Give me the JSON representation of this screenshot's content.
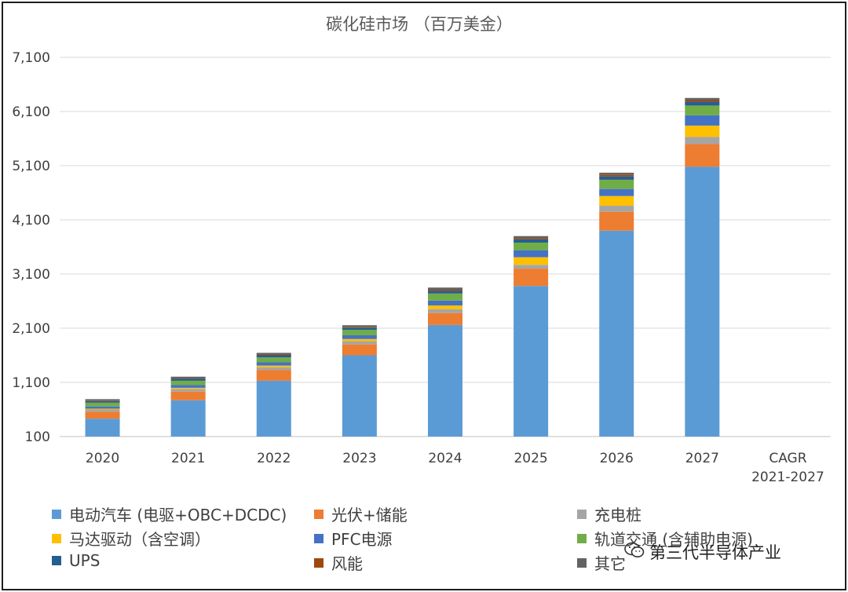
{
  "chart_data": {
    "type": "bar",
    "stacked": true,
    "title": "碳化硅市场 （百万美金）",
    "categories": [
      "2020",
      "2021",
      "2022",
      "2023",
      "2024",
      "2025",
      "2026",
      "2027",
      "CAGR\n2021-2027"
    ],
    "ylim": [
      100,
      7100
    ],
    "yticks": [
      "100",
      "1,100",
      "2,100",
      "3,100",
      "4,100",
      "5,100",
      "6,100",
      "7,100"
    ],
    "ytick_values": [
      100,
      1100,
      2100,
      3100,
      4100,
      5100,
      6100,
      7100
    ],
    "grid": true,
    "legend_position": "bottom",
    "series": [
      {
        "name": "电动汽车 (电驱+OBC+DCDC)",
        "color": "#5b9bd5",
        "values": [
          330,
          670,
          1030,
          1500,
          2060,
          2780,
          3800,
          4980,
          null
        ]
      },
      {
        "name": "光伏+储能",
        "color": "#ed7d31",
        "values": [
          130,
          160,
          200,
          200,
          220,
          320,
          350,
          420,
          null
        ]
      },
      {
        "name": "充电桩",
        "color": "#a5a5a5",
        "values": [
          40,
          50,
          50,
          60,
          70,
          70,
          110,
          130,
          null
        ]
      },
      {
        "name": "马达驱动（含空调）",
        "color": "#ffc000",
        "values": [
          15,
          20,
          30,
          40,
          70,
          140,
          180,
          210,
          null
        ]
      },
      {
        "name": "PFC电源",
        "color": "#4472c4",
        "values": [
          40,
          50,
          60,
          70,
          90,
          130,
          130,
          190,
          null
        ]
      },
      {
        "name": "轨道交通 (含辅助电源)",
        "color": "#70ad47",
        "values": [
          70,
          80,
          90,
          100,
          130,
          140,
          170,
          180,
          null
        ]
      },
      {
        "name": "UPS",
        "color": "#255e91",
        "values": [
          30,
          40,
          40,
          40,
          50,
          60,
          60,
          70,
          null
        ]
      },
      {
        "name": "风能",
        "color": "#9e480e",
        "values": [
          10,
          10,
          15,
          15,
          20,
          20,
          30,
          30,
          null
        ]
      },
      {
        "name": "其它",
        "color": "#636363",
        "values": [
          25,
          25,
          30,
          30,
          40,
          40,
          40,
          40,
          null
        ]
      }
    ]
  },
  "watermark": {
    "text": "第三代半导体产业",
    "icon": "wechat-icon"
  }
}
